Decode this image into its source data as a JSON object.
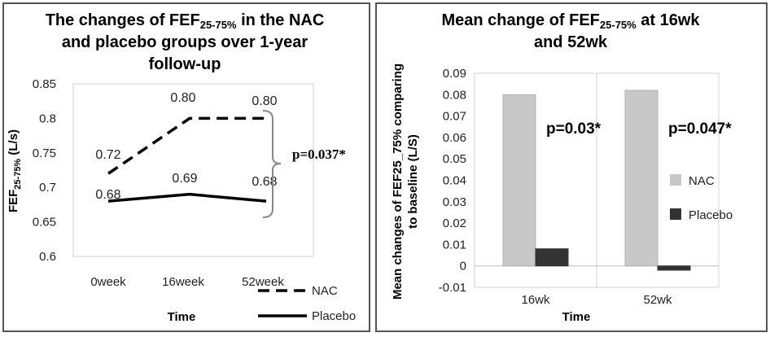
{
  "chart_data": [
    {
      "type": "line",
      "title_lines": [
        {
          "pre": "The changes of FEF",
          "sub": "25-75%",
          "post": " in the NAC"
        },
        {
          "pre": "and placebo groups over 1-year",
          "sub": "",
          "post": ""
        },
        {
          "pre": "follow-up",
          "sub": "",
          "post": ""
        }
      ],
      "categories": [
        "0week",
        "16week",
        "52week"
      ],
      "series": [
        {
          "name": "NAC",
          "values": [
            0.72,
            0.8,
            0.8
          ],
          "labels": [
            "0.72",
            "0.80",
            "0.80"
          ],
          "style": "dashed"
        },
        {
          "name": "Placebo",
          "values": [
            0.68,
            0.69,
            0.68
          ],
          "labels": [
            "0.68",
            "0.69",
            "0.68"
          ],
          "style": "solid"
        }
      ],
      "ylim": [
        0.6,
        0.85
      ],
      "yticks": [
        "0.6",
        "0.65",
        "0.7",
        "0.75",
        "0.8",
        "0.85"
      ],
      "ylabel": {
        "pre": "FEF",
        "sub": "25-75%",
        "post": " (L/s)"
      },
      "xlabel": "Time",
      "annotation": "p=0.037*",
      "legend_position": "bottom-right"
    },
    {
      "type": "bar",
      "title_lines": [
        {
          "pre": "Mean change of FEF",
          "sub": "25-75%",
          "post": " at 16wk"
        },
        {
          "pre": "and 52wk",
          "sub": "",
          "post": ""
        }
      ],
      "categories": [
        "16wk",
        "52wk"
      ],
      "series": [
        {
          "name": "NAC",
          "values": [
            0.08,
            0.082
          ],
          "color": "#c8c8c8"
        },
        {
          "name": "Placebo",
          "values": [
            0.008,
            -0.002
          ],
          "color": "#333333"
        }
      ],
      "ylim": [
        -0.01,
        0.09
      ],
      "yticks": [
        "-0.01",
        "0",
        "0.01",
        "0.02",
        "0.03",
        "0.04",
        "0.05",
        "0.06",
        "0.07",
        "0.08",
        "0.09"
      ],
      "ylabel_lines": [
        "Mean changes of FEF25_75% comparing",
        "to baseline (L/S)"
      ],
      "xlabel": "Time",
      "annotations": [
        "p=0.03*",
        "p=0.047*"
      ],
      "legend_position": "right"
    }
  ]
}
